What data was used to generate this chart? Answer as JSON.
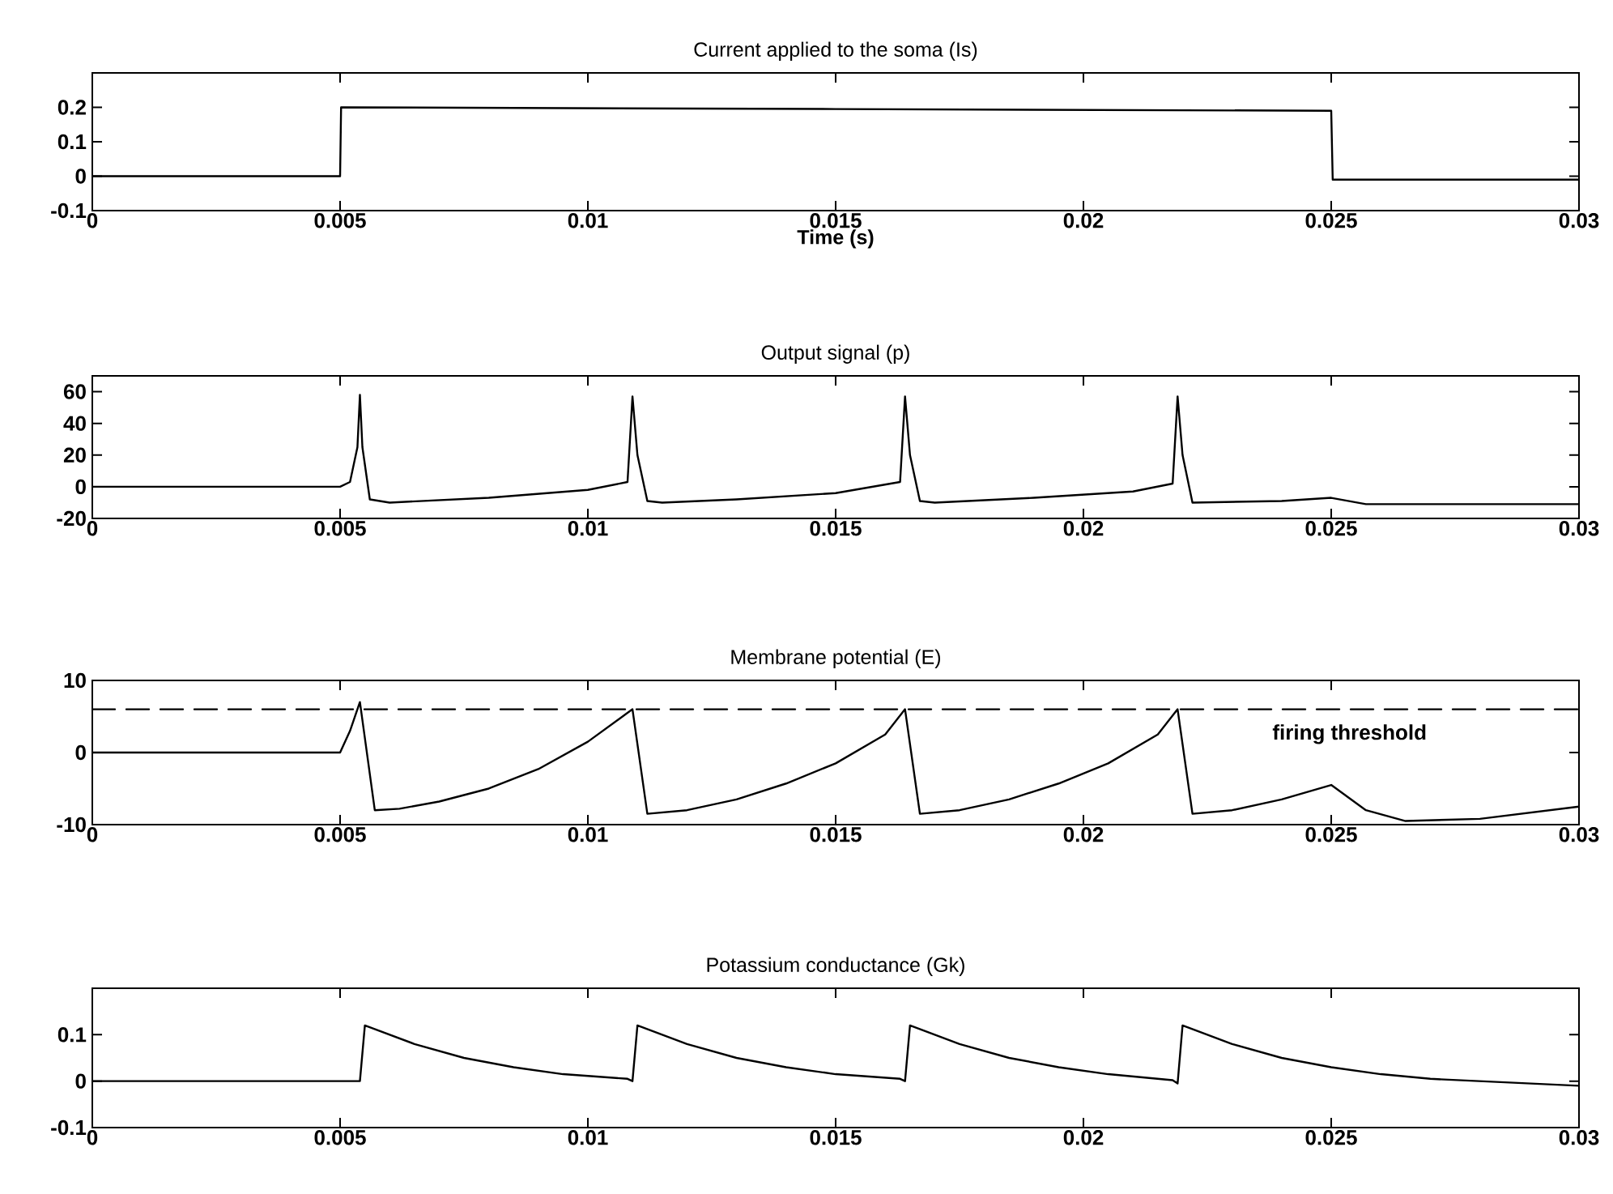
{
  "chart_data": [
    {
      "type": "line",
      "title": "Current applied to the soma (Is)",
      "xlabel": "Time (s)",
      "color": "#000000",
      "x": [
        0,
        0.005,
        0.00502,
        0.015,
        0.025,
        0.02503,
        0.03
      ],
      "values": [
        0,
        0,
        0.2,
        0.195,
        0.19,
        -0.01,
        -0.01
      ],
      "xlim": [
        0,
        0.03
      ],
      "xticks": [
        0,
        0.005,
        0.01,
        0.015,
        0.02,
        0.025,
        0.03
      ],
      "ylim": [
        -0.1,
        0.3
      ],
      "yticks": [
        -0.1,
        0,
        0.1,
        0.2
      ]
    },
    {
      "type": "line",
      "title": "Output signal (p)",
      "color": "#000000",
      "x": [
        0,
        0.005,
        0.0052,
        0.00535,
        0.0054,
        0.00545,
        0.0056,
        0.006,
        0.008,
        0.01,
        0.0108,
        0.0109,
        0.011,
        0.0112,
        0.0115,
        0.013,
        0.015,
        0.0163,
        0.0164,
        0.0165,
        0.0167,
        0.017,
        0.019,
        0.021,
        0.0218,
        0.0219,
        0.022,
        0.0222,
        0.024,
        0.025,
        0.0257,
        0.03
      ],
      "values": [
        0,
        0,
        3,
        25,
        58,
        25,
        -8,
        -10,
        -7,
        -2,
        3,
        57,
        20,
        -9,
        -10,
        -8,
        -4,
        3,
        57,
        20,
        -9,
        -10,
        -7,
        -3,
        2,
        57,
        20,
        -10,
        -9,
        -7,
        -11,
        -11
      ],
      "xlim": [
        0,
        0.03
      ],
      "xticks": [
        0,
        0.005,
        0.01,
        0.015,
        0.02,
        0.025,
        0.03
      ],
      "ylim": [
        -20,
        70
      ],
      "yticks": [
        -20,
        0,
        20,
        40,
        60
      ]
    },
    {
      "type": "line",
      "title": "Membrane potential (E)",
      "color": "#000000",
      "x": [
        0,
        0.005,
        0.0052,
        0.0054,
        0.0057,
        0.0062,
        0.007,
        0.008,
        0.009,
        0.01,
        0.0109,
        0.0112,
        0.012,
        0.013,
        0.014,
        0.015,
        0.016,
        0.0164,
        0.0167,
        0.0175,
        0.0185,
        0.0195,
        0.0205,
        0.0215,
        0.0219,
        0.0222,
        0.023,
        0.024,
        0.025,
        0.0257,
        0.0265,
        0.028,
        0.03
      ],
      "values": [
        0,
        0,
        3,
        7,
        -8,
        -7.8,
        -6.8,
        -5,
        -2.3,
        1.5,
        6,
        -8.5,
        -8,
        -6.5,
        -4.3,
        -1.5,
        2.5,
        6,
        -8.5,
        -8,
        -6.5,
        -4.3,
        -1.5,
        2.5,
        6,
        -8.5,
        -8,
        -6.5,
        -4.5,
        -8,
        -9.5,
        -9.2,
        -7.5
      ],
      "xlim": [
        0,
        0.03
      ],
      "xticks": [
        0,
        0.005,
        0.01,
        0.015,
        0.02,
        0.025,
        0.03
      ],
      "ylim": [
        -10,
        10
      ],
      "yticks": [
        -10,
        0,
        10
      ],
      "ref_lines": [
        {
          "axis": "y",
          "value": 6,
          "label": "firing threshold",
          "color": "#000000",
          "line_style": "dashed"
        }
      ]
    },
    {
      "type": "line",
      "title": "Potassium conductance (Gk)",
      "color": "#000000",
      "x": [
        0,
        0.0054,
        0.0055,
        0.0065,
        0.0075,
        0.0085,
        0.0095,
        0.0108,
        0.0109,
        0.011,
        0.012,
        0.013,
        0.014,
        0.015,
        0.0163,
        0.0164,
        0.0165,
        0.0175,
        0.0185,
        0.0195,
        0.0205,
        0.0218,
        0.0219,
        0.022,
        0.023,
        0.024,
        0.025,
        0.026,
        0.027,
        0.03
      ],
      "values": [
        0,
        0,
        0.12,
        0.08,
        0.05,
        0.03,
        0.015,
        0.005,
        0,
        0.12,
        0.08,
        0.05,
        0.03,
        0.015,
        0.005,
        0,
        0.12,
        0.08,
        0.05,
        0.03,
        0.015,
        0.002,
        -0.005,
        0.12,
        0.08,
        0.05,
        0.03,
        0.015,
        0.005,
        -0.01
      ],
      "xlim": [
        0,
        0.03
      ],
      "xticks": [
        0,
        0.005,
        0.01,
        0.015,
        0.02,
        0.025,
        0.03
      ],
      "ylim": [
        -0.1,
        0.2
      ],
      "yticks": [
        -0.1,
        0,
        0.1
      ]
    }
  ]
}
